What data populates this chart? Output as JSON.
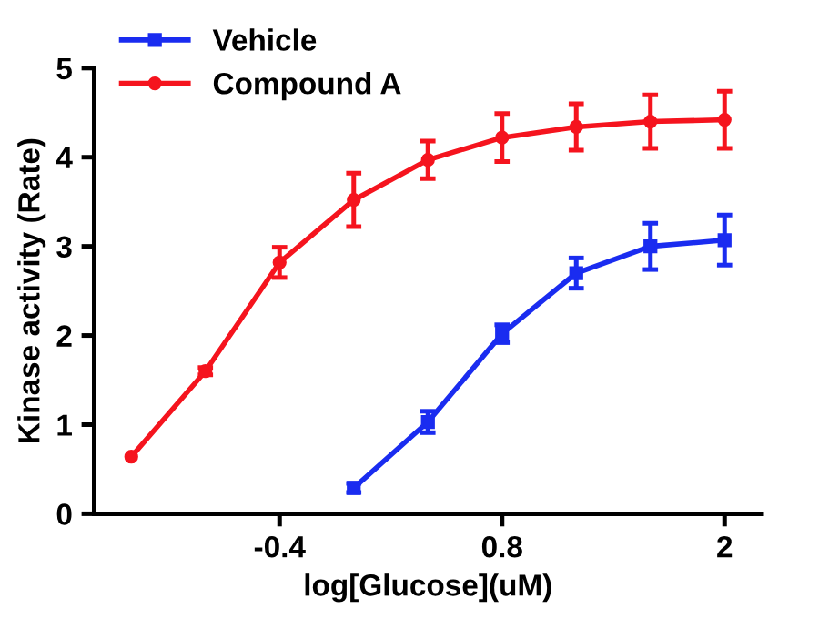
{
  "chart_data": {
    "type": "line",
    "xlabel": "log[Glucose](uM)",
    "ylabel": "Kinase activity (Rate)",
    "xlim": [
      -1.4,
      2.2
    ],
    "xticks": [
      -0.4,
      0.8,
      2
    ],
    "ylim": [
      0,
      5
    ],
    "yticks": [
      0,
      1,
      2,
      3,
      4,
      5
    ],
    "grid": false,
    "legend": "top left",
    "series": [
      {
        "name": "Vehicle",
        "color": "#1a2cf0",
        "marker": "square",
        "x": [
          0,
          0.4,
          0.8,
          1.2,
          1.6,
          2
        ],
        "values": [
          0.29,
          1.03,
          2.02,
          2.7,
          3.0,
          3.07
        ],
        "errors": [
          0.05,
          0.12,
          0.1,
          0.17,
          0.26,
          0.28
        ]
      },
      {
        "name": "Compound A",
        "color": "#f5141e",
        "marker": "circle",
        "x": [
          -1.2,
          -0.8,
          -0.4,
          0,
          0.4,
          0.8,
          1.2,
          1.6,
          2
        ],
        "values": [
          0.64,
          1.6,
          2.82,
          3.52,
          3.97,
          4.22,
          4.34,
          4.4,
          4.42
        ],
        "errors": [
          null,
          0.04,
          0.17,
          0.3,
          0.21,
          0.27,
          0.26,
          0.3,
          0.32
        ]
      }
    ]
  }
}
